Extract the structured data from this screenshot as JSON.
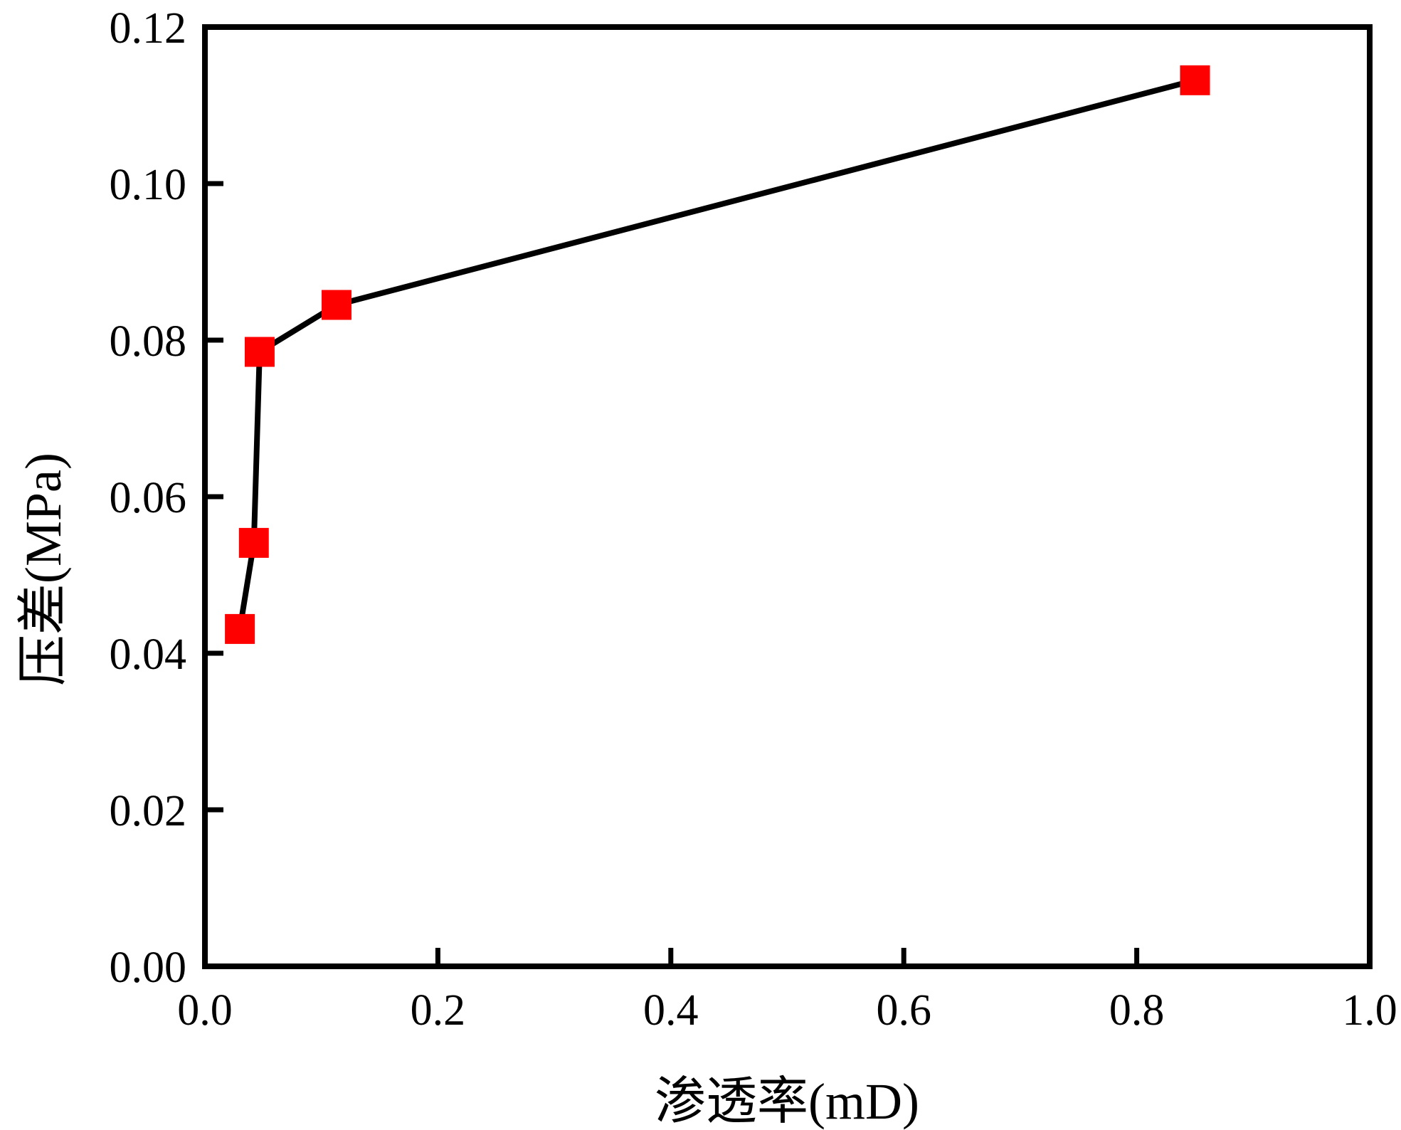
{
  "chart_data": {
    "type": "line",
    "xlabel": "渗透率(mD)",
    "ylabel": "压差(MPa)",
    "xlim": [
      0.0,
      1.0
    ],
    "ylim": [
      0.0,
      0.12
    ],
    "x_ticks": [
      "0.0",
      "0.2",
      "0.4",
      "0.6",
      "0.8",
      "1.0"
    ],
    "y_ticks": [
      "0.00",
      "0.02",
      "0.04",
      "0.06",
      "0.08",
      "0.10",
      "0.12"
    ],
    "grid": false,
    "legend": "none",
    "marker": "square",
    "series": [
      {
        "x": [
          0.03,
          0.042,
          0.047,
          0.113,
          0.85
        ],
        "y": [
          0.0431,
          0.0541,
          0.0785,
          0.0845,
          0.1132
        ],
        "line_color": "#000000",
        "marker_color": "#ff0000"
      }
    ]
  }
}
